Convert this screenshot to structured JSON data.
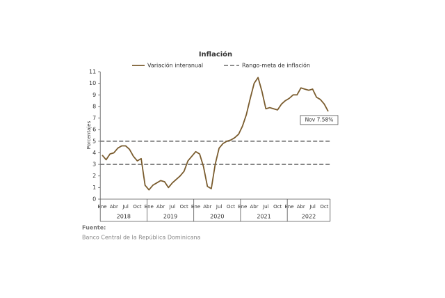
{
  "chart_data": {
    "type": "line",
    "title": "Inflación",
    "y_label": "Porcentajes",
    "categories": [
      "Ene",
      null,
      null,
      "Abr",
      null,
      null,
      "Jul",
      null,
      null,
      "Oct",
      null,
      null,
      "Ene",
      null,
      null,
      "Abr",
      null,
      null,
      "Jul",
      null,
      null,
      "Oct",
      null,
      null,
      "Ene",
      null,
      null,
      "Abr",
      null,
      null,
      "Jul",
      null,
      null,
      "Oct",
      null,
      null,
      "Ene",
      null,
      null,
      "Abr",
      null,
      null,
      "Jul",
      null,
      null,
      "Oct",
      null,
      null,
      "Ene",
      null,
      null,
      "Abr",
      null,
      null,
      "Jul",
      null,
      null,
      "Oct",
      null
    ],
    "years": [
      "2018",
      "2019",
      "2020",
      "2021",
      "2022"
    ],
    "series": [
      {
        "name": "Variación interanual",
        "color": "#7a5c2e",
        "values": [
          3.8,
          3.4,
          3.9,
          4.0,
          4.4,
          4.6,
          4.6,
          4.3,
          3.7,
          3.3,
          3.5,
          1.2,
          0.8,
          1.2,
          1.4,
          1.6,
          1.5,
          1.0,
          1.4,
          1.7,
          2.0,
          2.4,
          3.3,
          3.7,
          4.1,
          3.9,
          2.8,
          1.1,
          0.9,
          3.0,
          4.4,
          4.8,
          5.0,
          5.1,
          5.3,
          5.6,
          6.3,
          7.3,
          8.7,
          10.0,
          10.5,
          9.3,
          7.8,
          7.9,
          7.8,
          7.7,
          8.2,
          8.5,
          8.7,
          9.0,
          9.0,
          9.6,
          9.5,
          9.4,
          9.5,
          8.8,
          8.6,
          8.2,
          7.58
        ]
      }
    ],
    "target_range": {
      "name": "Rango-meta de inflación",
      "color": "#7f7f7f",
      "values": [
        3,
        5
      ]
    },
    "annotation": "Nov 7.58%",
    "ylim": [
      0,
      11
    ],
    "yticks": [
      0,
      1,
      2,
      3,
      4,
      5,
      6,
      7,
      8,
      9,
      10,
      11
    ],
    "source_label": "Fuente:",
    "source": "Banco Central de la República Dominicana"
  }
}
